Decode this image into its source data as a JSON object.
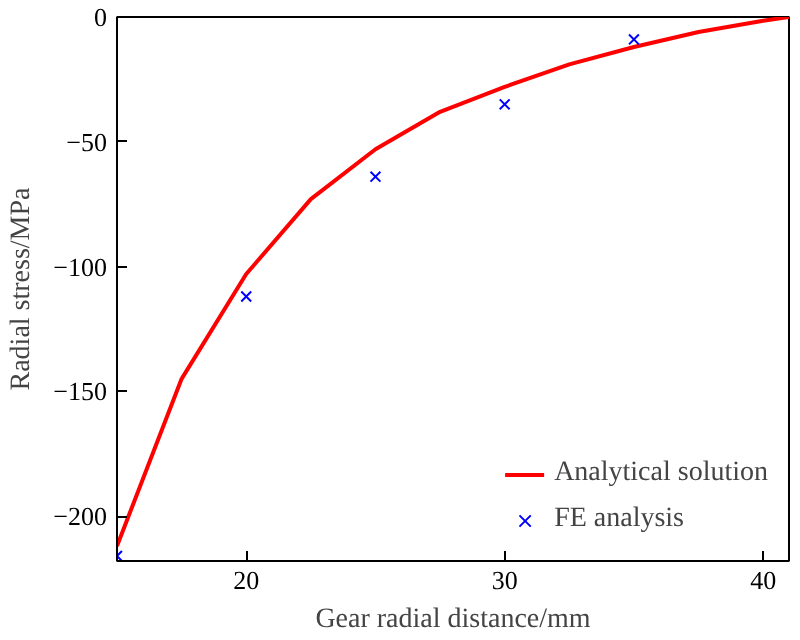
{
  "chart_data": {
    "type": "line",
    "xlabel": "Gear radial distance/mm",
    "ylabel": "Radial stress/MPa",
    "xlim": [
      15,
      41
    ],
    "xticks": [
      20,
      30,
      40
    ],
    "ylim": [
      -218,
      0
    ],
    "yticks": [
      -200,
      -150,
      -100,
      -50,
      0
    ],
    "grid": false,
    "legend": "bottom right",
    "series": [
      {
        "name": "Analytical solution",
        "color": "#ff0000",
        "marker": "none",
        "x": [
          15,
          17.5,
          20,
          22.5,
          25,
          27.5,
          30,
          32.5,
          35,
          37.5,
          40,
          41
        ],
        "values": [
          -212,
          -145,
          -103,
          -73,
          -53,
          -38,
          -28,
          -19,
          -12,
          -6,
          -1.5,
          0
        ]
      },
      {
        "name": "FE analysis",
        "type": "scatter",
        "color": "#0000ff",
        "marker": "cross",
        "x": [
          15,
          20,
          25,
          30,
          35
        ],
        "values": [
          -216,
          -112,
          -64,
          -35,
          -9
        ]
      }
    ]
  }
}
